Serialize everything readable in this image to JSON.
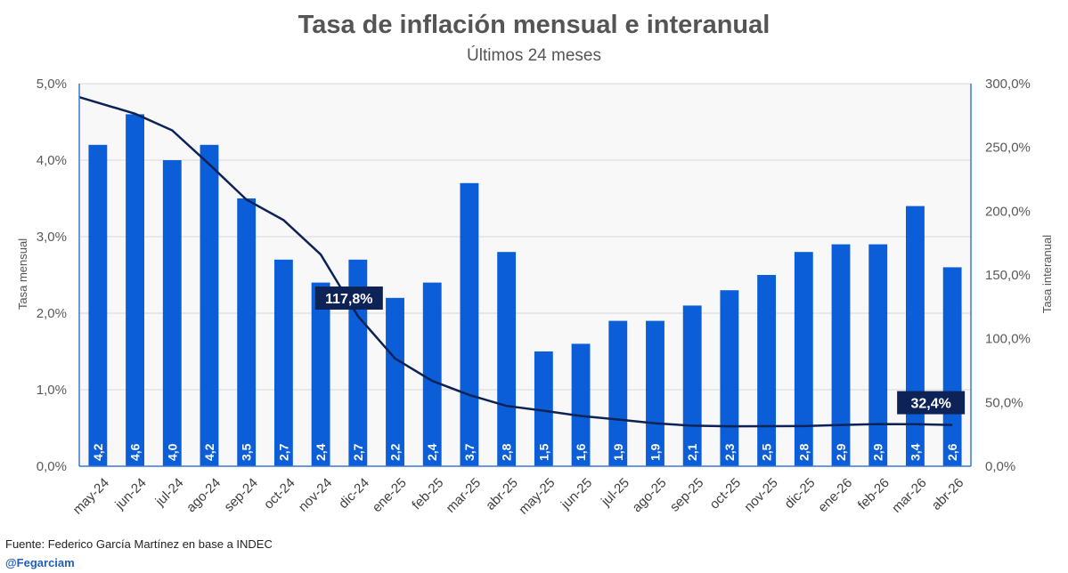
{
  "colors": {
    "bar": "#0b5ed7",
    "line": "#0d2256",
    "axis": "#3b78d8",
    "grid": "#d9d9d9",
    "plot_bg": "#f8f8f8",
    "callout_bg": "#0d2256"
  },
  "chart_data": {
    "type": "bar",
    "title": "Tasa de inflación mensual e interanual",
    "subtitle": "Últimos 24 meses",
    "categories": [
      "may-24",
      "jun-24",
      "jul-24",
      "ago-24",
      "sep-24",
      "oct-24",
      "nov-24",
      "dic-24",
      "ene-25",
      "feb-25",
      "mar-25",
      "abr-25",
      "may-25",
      "jun-25",
      "jul-25",
      "ago-25",
      "sep-25",
      "oct-25",
      "nov-25",
      "dic-25",
      "ene-26",
      "feb-26",
      "mar-26",
      "abr-26"
    ],
    "series": [
      {
        "name": "Tasa mensual",
        "type": "bar",
        "axis": "left",
        "values": [
          4.2,
          4.6,
          4.0,
          4.2,
          3.5,
          2.7,
          2.4,
          2.7,
          2.2,
          2.4,
          3.7,
          2.8,
          1.5,
          1.6,
          1.9,
          1.9,
          2.1,
          2.3,
          2.5,
          2.8,
          2.9,
          2.9,
          3.4,
          2.6
        ],
        "labels": [
          "4,2",
          "4,6",
          "4,0",
          "4,2",
          "3,5",
          "2,7",
          "2,4",
          "2,7",
          "2,2",
          "2,4",
          "3,7",
          "2,8",
          "1,5",
          "1,6",
          "1,9",
          "1,9",
          "2,1",
          "2,3",
          "2,5",
          "2,8",
          "2,9",
          "2,9",
          "3,4",
          "2,6"
        ]
      },
      {
        "name": "Tasa interanual",
        "type": "line",
        "axis": "right",
        "values": [
          289.4,
          276.4,
          263.4,
          236.7,
          209.0,
          193.0,
          166.0,
          117.8,
          84.5,
          66.9,
          55.9,
          47.3,
          43.5,
          39.4,
          36.6,
          33.6,
          31.8,
          31.3,
          31.4,
          31.5,
          32.4,
          33.1,
          32.9,
          32.4
        ]
      }
    ],
    "callouts": [
      {
        "index": 7,
        "text": "117,8%"
      },
      {
        "index": 23,
        "text": "32,4%"
      }
    ],
    "ylabel": "Tasa mensual",
    "y2label": "Tasa interanual",
    "ylim": [
      0,
      5
    ],
    "y2lim": [
      0,
      300
    ],
    "yticks": [
      "0,0%",
      "1,0%",
      "2,0%",
      "3,0%",
      "4,0%",
      "5,0%"
    ],
    "y2ticks": [
      "0,0%",
      "50,0%",
      "100,0%",
      "150,0%",
      "200,0%",
      "250,0%",
      "300,0%"
    ],
    "grid": true
  },
  "footer": {
    "source": "Fuente: Federico García Martínez en base a INDEC",
    "handle": "@Fegarciam"
  }
}
